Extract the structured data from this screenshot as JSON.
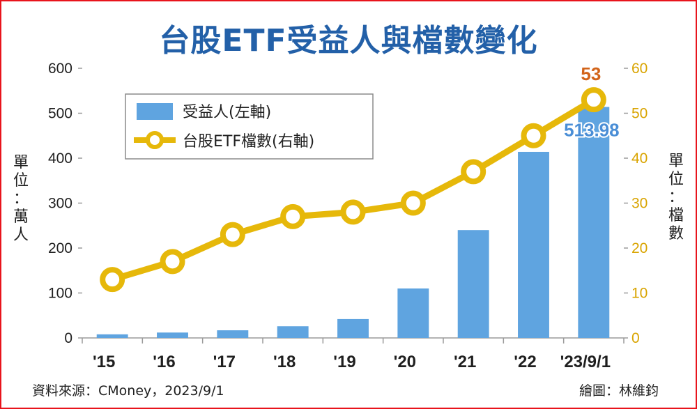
{
  "chart_data": {
    "type": "bar+line",
    "title": "台股ETF受益人與檔數變化",
    "categories": [
      "'15",
      "'16",
      "'17",
      "'18",
      "'19",
      "'20",
      "'21",
      "'22",
      "'23/9/1"
    ],
    "series": [
      {
        "name": "受益人(左軸)",
        "type": "bar",
        "axis": "left",
        "color": "#5fa4e0",
        "values": [
          8,
          12,
          17,
          26,
          42,
          110,
          240,
          414,
          513.98
        ]
      },
      {
        "name": "台股ETF檔數(右軸)",
        "type": "line",
        "axis": "right",
        "color": "#e6b80a",
        "values": [
          13,
          17,
          23,
          27,
          28,
          30,
          37,
          45,
          53
        ]
      }
    ],
    "left_axis": {
      "label": "單位：萬人",
      "ylim": [
        0,
        600
      ],
      "ticks": [
        "0",
        "100",
        "200",
        "300",
        "400",
        "500",
        "600"
      ]
    },
    "right_axis": {
      "label": "單位：檔數",
      "ylim": [
        0,
        60
      ],
      "ticks": [
        "0",
        "10",
        "20",
        "30",
        "40",
        "50",
        "60"
      ]
    },
    "annotations": {
      "bar_last": "513.98",
      "line_last": "53"
    },
    "legend": {
      "position": "top-left",
      "items": [
        "受益人(左軸)",
        "台股ETF檔數(右軸)"
      ]
    },
    "grid": false
  },
  "footer": {
    "source": "資料來源：CMoney，2023/9/1",
    "credit": "繪圖：林維鈞"
  },
  "colors": {
    "border": "#e8141c",
    "title": "#2360a8",
    "bar": "#5fa4e0",
    "line": "#e6b80a",
    "right_axis_text": "#d9a400",
    "label_line": "#d2641a",
    "label_bar": "#4a8ed6"
  }
}
